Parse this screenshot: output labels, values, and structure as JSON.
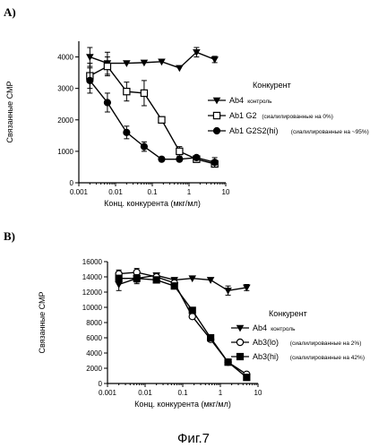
{
  "figure_caption": "Фиг.7",
  "chart_data": [
    {
      "panel_label": "A)",
      "type": "line",
      "xscale": "log",
      "xlim": [
        0.001,
        10
      ],
      "ylim": [
        0,
        4500
      ],
      "xticks": [
        0.001,
        0.01,
        0.1,
        1,
        10
      ],
      "xtick_labels": [
        "0.001",
        "0.01",
        "0.1",
        "1",
        "10"
      ],
      "yticks": [
        0,
        1000,
        2000,
        3000,
        4000
      ],
      "ytick_labels": [
        "0",
        "1000",
        "2000",
        "3000",
        "4000"
      ],
      "xlabel": "Конц. конкурента (мкг/мл)",
      "ylabel": "Связанные СМР",
      "grid": false,
      "legend_title": "Конкурент",
      "legend_position": "right",
      "series": [
        {
          "name": "Ab4",
          "note": "контроль",
          "marker": "triangle-down",
          "x": [
            0.002,
            0.006,
            0.02,
            0.06,
            0.18,
            0.55,
            1.6,
            5
          ],
          "y": [
            4000,
            3800,
            3800,
            3820,
            3850,
            3650,
            4150,
            3920
          ],
          "err": [
            300,
            350,
            0,
            0,
            0,
            0,
            150,
            100
          ]
        },
        {
          "name": "Ab1 G2",
          "note": "(сиалилированные на 0%)",
          "marker": "square-open",
          "x": [
            0.002,
            0.006,
            0.02,
            0.06,
            0.18,
            0.55,
            1.6,
            5
          ],
          "y": [
            3400,
            3700,
            2900,
            2850,
            2000,
            1000,
            750,
            600
          ],
          "err": [
            400,
            300,
            300,
            400,
            100,
            150,
            100,
            100
          ]
        },
        {
          "name": "Ab1 G2S2(hi)",
          "note": "(сиалилированные на ~95%)",
          "marker": "circle-filled",
          "x": [
            0.002,
            0.006,
            0.02,
            0.06,
            0.18,
            0.55,
            1.6,
            5
          ],
          "y": [
            3250,
            2550,
            1600,
            1150,
            750,
            750,
            800,
            650
          ],
          "err": [
            400,
            300,
            200,
            150,
            0,
            0,
            0,
            150
          ]
        }
      ]
    },
    {
      "panel_label": "B)",
      "type": "line",
      "xscale": "log",
      "xlim": [
        0.001,
        10
      ],
      "ylim": [
        0,
        16000
      ],
      "xticks": [
        0.001,
        0.01,
        0.1,
        1,
        10
      ],
      "xtick_labels": [
        "0.001",
        "0.01",
        "0.1",
        "1",
        "10"
      ],
      "yticks": [
        0,
        2000,
        4000,
        6000,
        8000,
        10000,
        12000,
        14000,
        16000
      ],
      "ytick_labels": [
        "0",
        "2000",
        "4000",
        "6000",
        "8000",
        "10000",
        "12000",
        "14000",
        "16000"
      ],
      "xlabel": "Конц. конкурента (мкг/мл)",
      "ylabel": "Связанные СМР",
      "grid": false,
      "legend_title": "Конкурент",
      "legend_position": "right",
      "series": [
        {
          "name": "Ab4",
          "note": "контроль",
          "marker": "triangle-down",
          "x": [
            0.002,
            0.006,
            0.02,
            0.06,
            0.18,
            0.55,
            1.6,
            5
          ],
          "y": [
            13000,
            13800,
            14200,
            13600,
            13800,
            13600,
            12200,
            12600
          ],
          "err": [
            800,
            700,
            0,
            0,
            0,
            0,
            600,
            400
          ]
        },
        {
          "name": "Ab3(lo)",
          "note": "(сиалилированные на 2%)",
          "marker": "circle-open",
          "x": [
            0.002,
            0.006,
            0.02,
            0.06,
            0.18,
            0.55,
            1.6,
            5
          ],
          "y": [
            14400,
            14600,
            14000,
            13200,
            8800,
            5800,
            2800,
            1200
          ],
          "err": [
            500,
            500,
            300,
            300,
            300,
            200,
            200,
            100
          ]
        },
        {
          "name": "Ab3(hi)",
          "note": "(сиалилированные на 42%)",
          "marker": "square-filled",
          "x": [
            0.002,
            0.006,
            0.02,
            0.06,
            0.18,
            0.55,
            1.6,
            5
          ],
          "y": [
            13800,
            13800,
            13600,
            12800,
            9600,
            6000,
            2800,
            800
          ],
          "err": [
            400,
            500,
            300,
            300,
            400,
            200,
            200,
            100
          ]
        }
      ]
    }
  ]
}
